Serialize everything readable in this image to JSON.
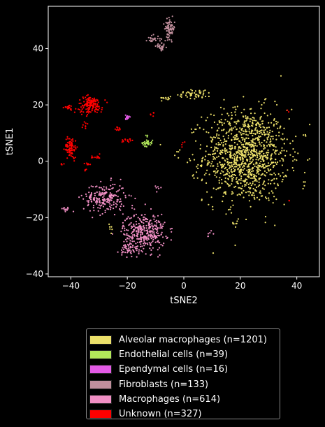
{
  "chart_data": {
    "type": "scatter",
    "title": "",
    "xlabel": "tSNE2",
    "ylabel": "tSNE1",
    "xlim": [
      -48,
      48
    ],
    "ylim": [
      -41,
      55
    ],
    "xticks": [
      -40,
      -20,
      0,
      20,
      40
    ],
    "yticks": [
      -40,
      -20,
      0,
      20,
      40
    ],
    "grid": false,
    "legend_position": "bottom-center",
    "series": [
      {
        "name": "Alveolar macrophages (n=1201)",
        "color": "#ece06a",
        "n": 1201,
        "clusters": [
          {
            "center": [
              22,
              2
            ],
            "spread": [
              10,
              11
            ],
            "count": 1120
          },
          {
            "center": [
              4,
              24
            ],
            "spread": [
              4,
              1.2
            ],
            "count": 45
          },
          {
            "center": [
              -6,
              22.5
            ],
            "spread": [
              1.2,
              0.6
            ],
            "count": 12
          },
          {
            "center": [
              -26,
              -24
            ],
            "spread": [
              1,
              1
            ],
            "count": 6
          },
          {
            "center": [
              18,
              -22
            ],
            "spread": [
              1.2,
              1
            ],
            "count": 8
          },
          {
            "center": [
              -3,
              3
            ],
            "spread": [
              1.5,
              1.5
            ],
            "count": 4
          },
          {
            "center": [
              42,
              -8
            ],
            "spread": [
              1,
              1
            ],
            "count": 3
          },
          {
            "center": [
              43,
              9
            ],
            "spread": [
              0.5,
              0.5
            ],
            "count": 3
          }
        ]
      },
      {
        "name": "Endothelial cells (n=39)",
        "color": "#b2e85a",
        "n": 39,
        "clusters": [
          {
            "center": [
              -13,
              6.5
            ],
            "spread": [
              1.3,
              0.8
            ],
            "count": 36
          },
          {
            "center": [
              -13,
              8.8
            ],
            "spread": [
              0.3,
              0.4
            ],
            "count": 3
          }
        ]
      },
      {
        "name": "Ependymal cells (n=16)",
        "color": "#e35ae6",
        "n": 16,
        "clusters": [
          {
            "center": [
              -20,
              15.5
            ],
            "spread": [
              0.4,
              0.7
            ],
            "count": 16
          }
        ]
      },
      {
        "name": "Fibroblasts (n=133)",
        "color": "#c08f9c",
        "n": 133,
        "clusters": [
          {
            "center": [
              -5,
              47
            ],
            "spread": [
              1.2,
              2.3
            ],
            "count": 80
          },
          {
            "center": [
              -11,
              43.5
            ],
            "spread": [
              1.5,
              0.8
            ],
            "count": 25
          },
          {
            "center": [
              -8,
              40.5
            ],
            "spread": [
              1.2,
              0.8
            ],
            "count": 28
          }
        ]
      },
      {
        "name": "Macrophages (n=614)",
        "color": "#f08fc4",
        "n": 614,
        "clusters": [
          {
            "center": [
              -28,
              -13
            ],
            "spread": [
              5,
              3.5
            ],
            "count": 210
          },
          {
            "center": [
              -14,
              -25
            ],
            "spread": [
              5,
              4.5
            ],
            "count": 330
          },
          {
            "center": [
              -19,
              -31
            ],
            "spread": [
              2.5,
              2
            ],
            "count": 50
          },
          {
            "center": [
              -42,
              -17
            ],
            "spread": [
              0.8,
              0.4
            ],
            "count": 12
          },
          {
            "center": [
              9,
              -26
            ],
            "spread": [
              1,
              1
            ],
            "count": 6
          },
          {
            "center": [
              -9,
              -9
            ],
            "spread": [
              1,
              1
            ],
            "count": 6
          }
        ]
      },
      {
        "name": "Unknown (n=327)",
        "color": "#ff0000",
        "n": 327,
        "clusters": [
          {
            "center": [
              -33,
              20
            ],
            "spread": [
              2.8,
              2
            ],
            "count": 150
          },
          {
            "center": [
              -40,
              5
            ],
            "spread": [
              1.4,
              2.5
            ],
            "count": 85
          },
          {
            "center": [
              -41,
              19
            ],
            "spread": [
              1.4,
              0.6
            ],
            "count": 22
          },
          {
            "center": [
              -23,
              11.5
            ],
            "spread": [
              1,
              0.6
            ],
            "count": 10
          },
          {
            "center": [
              -20,
              7.5
            ],
            "spread": [
              1.6,
              0.6
            ],
            "count": 14
          },
          {
            "center": [
              -31,
              1.5
            ],
            "spread": [
              1.2,
              0.5
            ],
            "count": 10
          },
          {
            "center": [
              -35,
              13
            ],
            "spread": [
              0.6,
              0.8
            ],
            "count": 8
          },
          {
            "center": [
              -34,
              -1
            ],
            "spread": [
              0.5,
              0.5
            ],
            "count": 6
          },
          {
            "center": [
              -11,
              17
            ],
            "spread": [
              0.5,
              0.6
            ],
            "count": 6
          },
          {
            "center": [
              -0.5,
              6
            ],
            "spread": [
              0.3,
              0.5
            ],
            "count": 4
          },
          {
            "center": [
              -43,
              -1
            ],
            "spread": [
              0.4,
              0.4
            ],
            "count": 4
          },
          {
            "center": [
              -35,
              -3
            ],
            "spread": [
              0.5,
              0.5
            ],
            "count": 4
          },
          {
            "center": [
              37,
              -14
            ],
            "spread": [
              0.5,
              0.5
            ],
            "count": 2
          },
          {
            "center": [
              37,
              18
            ],
            "spread": [
              0.4,
              0.4
            ],
            "count": 2
          }
        ]
      }
    ]
  }
}
